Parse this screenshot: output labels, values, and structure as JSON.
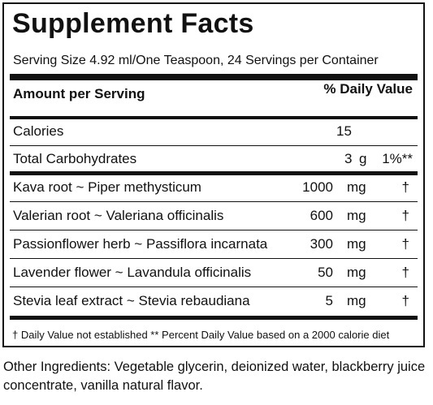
{
  "title": "Supplement Facts",
  "serving": "Serving Size 4.92 ml/One Teaspoon, 24 Servings per Container",
  "header": {
    "amount": "Amount per Serving",
    "daily_value": "% Daily Value"
  },
  "calories": {
    "name": "Calories",
    "amount": "15"
  },
  "carbs": {
    "name": "Total Carbohydrates",
    "amount": "3",
    "unit": "g",
    "dv": "1%**"
  },
  "ingredients": [
    {
      "name": "Kava root ~ Piper methysticum",
      "amount": "1000",
      "unit": "mg",
      "dv": "†"
    },
    {
      "name": "Valerian root ~ Valeriana officinalis",
      "amount": "600",
      "unit": "mg",
      "dv": "†"
    },
    {
      "name": "Passionflower herb ~ Passiflora incarnata",
      "amount": "300",
      "unit": "mg",
      "dv": "†"
    },
    {
      "name": "Lavender flower ~ Lavandula officinalis",
      "amount": "50",
      "unit": "mg",
      "dv": "†"
    },
    {
      "name": "Stevia leaf extract ~ Stevia rebaudiana",
      "amount": "5",
      "unit": "mg",
      "dv": "†"
    }
  ],
  "footnote": "† Daily Value not established  ** Percent Daily Value based on a 2000 calorie diet",
  "other_ingredients": "Other Ingredients: Vegetable glycerin, deionized water, blackberry juice concentrate, vanilla natural flavor."
}
